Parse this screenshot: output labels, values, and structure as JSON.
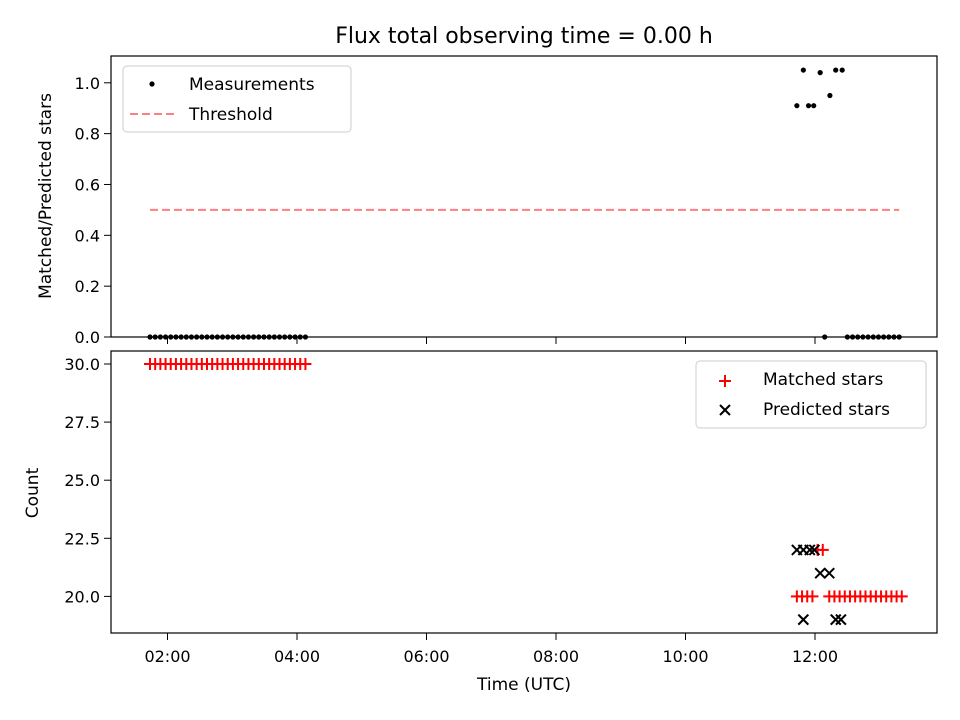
{
  "chart_data": [
    {
      "type": "scatter",
      "title": "Flux total observing time = 0.00 h",
      "xlabel": "",
      "ylabel": "Matched/Predicted stars",
      "ylim": [
        0,
        1.1
      ],
      "yticks": [
        "0.0",
        "0.2",
        "0.4",
        "0.6",
        "0.8",
        "1.0"
      ],
      "x_unit": "hours (UTC)",
      "legend_position": "upper-left",
      "series": [
        {
          "name": "Measurements",
          "marker": "dot",
          "color": "#000000",
          "points": [
            [
              1.73,
              0
            ],
            [
              1.81,
              0
            ],
            [
              1.89,
              0
            ],
            [
              1.97,
              0
            ],
            [
              2.05,
              0
            ],
            [
              2.13,
              0
            ],
            [
              2.21,
              0
            ],
            [
              2.29,
              0
            ],
            [
              2.37,
              0
            ],
            [
              2.45,
              0
            ],
            [
              2.53,
              0
            ],
            [
              2.61,
              0
            ],
            [
              2.69,
              0
            ],
            [
              2.77,
              0
            ],
            [
              2.85,
              0
            ],
            [
              2.93,
              0
            ],
            [
              3.01,
              0
            ],
            [
              3.09,
              0
            ],
            [
              3.17,
              0
            ],
            [
              3.25,
              0
            ],
            [
              3.33,
              0
            ],
            [
              3.41,
              0
            ],
            [
              3.49,
              0
            ],
            [
              3.57,
              0
            ],
            [
              3.65,
              0
            ],
            [
              3.73,
              0
            ],
            [
              3.81,
              0
            ],
            [
              3.89,
              0
            ],
            [
              3.97,
              0
            ],
            [
              4.05,
              0
            ],
            [
              4.13,
              0
            ],
            [
              11.72,
              0.91
            ],
            [
              11.82,
              1.05
            ],
            [
              11.9,
              0.91
            ],
            [
              11.98,
              0.91
            ],
            [
              12.08,
              1.04
            ],
            [
              12.15,
              0
            ],
            [
              12.23,
              0.95
            ],
            [
              12.32,
              1.05
            ],
            [
              12.42,
              1.05
            ],
            [
              12.5,
              0
            ],
            [
              12.58,
              0
            ],
            [
              12.66,
              0
            ],
            [
              12.74,
              0
            ],
            [
              12.82,
              0
            ],
            [
              12.9,
              0
            ],
            [
              12.98,
              0
            ],
            [
              13.06,
              0
            ],
            [
              13.14,
              0
            ],
            [
              13.22,
              0
            ],
            [
              13.3,
              0
            ]
          ]
        },
        {
          "name": "Threshold",
          "style": "dashed",
          "color": "#ff7f7f",
          "points": [
            [
              1.73,
              0.5
            ],
            [
              13.3,
              0.5
            ]
          ]
        }
      ]
    },
    {
      "type": "scatter",
      "title": "",
      "xlabel": "Time (UTC)",
      "ylabel": "Count",
      "ylim": [
        18.6,
        30.4
      ],
      "yticks": [
        "20.0",
        "22.5",
        "25.0",
        "27.5",
        "30.0"
      ],
      "xticks": [
        "02:00",
        "04:00",
        "06:00",
        "08:00",
        "10:00",
        "12:00"
      ],
      "x_unit": "hours (UTC)",
      "legend_position": "upper-right",
      "series": [
        {
          "name": "Matched stars",
          "marker": "plus",
          "color": "#ff0000",
          "points": [
            [
              1.73,
              30
            ],
            [
              1.81,
              30
            ],
            [
              1.89,
              30
            ],
            [
              1.97,
              30
            ],
            [
              2.05,
              30
            ],
            [
              2.13,
              30
            ],
            [
              2.21,
              30
            ],
            [
              2.29,
              30
            ],
            [
              2.37,
              30
            ],
            [
              2.45,
              30
            ],
            [
              2.53,
              30
            ],
            [
              2.61,
              30
            ],
            [
              2.69,
              30
            ],
            [
              2.77,
              30
            ],
            [
              2.85,
              30
            ],
            [
              2.93,
              30
            ],
            [
              3.01,
              30
            ],
            [
              3.09,
              30
            ],
            [
              3.17,
              30
            ],
            [
              3.25,
              30
            ],
            [
              3.33,
              30
            ],
            [
              3.41,
              30
            ],
            [
              3.49,
              30
            ],
            [
              3.57,
              30
            ],
            [
              3.65,
              30
            ],
            [
              3.73,
              30
            ],
            [
              3.81,
              30
            ],
            [
              3.89,
              30
            ],
            [
              3.97,
              30
            ],
            [
              4.05,
              30
            ],
            [
              4.13,
              30
            ],
            [
              11.72,
              20
            ],
            [
              11.8,
              20
            ],
            [
              11.88,
              20
            ],
            [
              11.96,
              20
            ],
            [
              12.04,
              22
            ],
            [
              12.12,
              22
            ],
            [
              12.22,
              20
            ],
            [
              12.3,
              20
            ],
            [
              12.38,
              20
            ],
            [
              12.46,
              20
            ],
            [
              12.54,
              20
            ],
            [
              12.62,
              20
            ],
            [
              12.7,
              20
            ],
            [
              12.78,
              20
            ],
            [
              12.86,
              20
            ],
            [
              12.94,
              20
            ],
            [
              13.02,
              20
            ],
            [
              13.1,
              20
            ],
            [
              13.18,
              20
            ],
            [
              13.26,
              20
            ],
            [
              13.34,
              20
            ]
          ]
        },
        {
          "name": "Predicted stars",
          "marker": "x",
          "color": "#000000",
          "points": [
            [
              11.72,
              22
            ],
            [
              11.82,
              22
            ],
            [
              11.82,
              19
            ],
            [
              11.92,
              22
            ],
            [
              11.99,
              22
            ],
            [
              12.08,
              21
            ],
            [
              12.22,
              21
            ],
            [
              12.32,
              19
            ],
            [
              12.4,
              19
            ]
          ]
        }
      ]
    }
  ]
}
